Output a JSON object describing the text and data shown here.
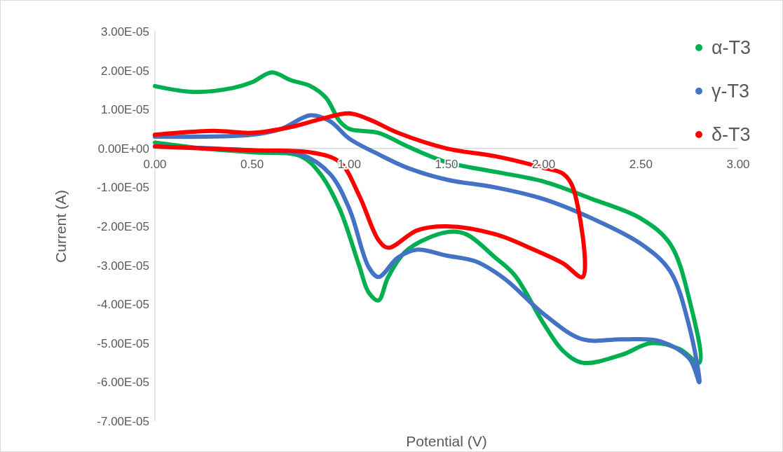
{
  "chart_data": {
    "type": "line",
    "xlabel": "Potential (V)",
    "ylabel": "Current (A)",
    "xlim": [
      0,
      3
    ],
    "ylim": [
      -7e-05,
      3e-05
    ],
    "xticks": [
      {
        "value": 0,
        "label": "0.00"
      },
      {
        "value": 0.5,
        "label": "0.50"
      },
      {
        "value": 1,
        "label": "1.00"
      },
      {
        "value": 1.5,
        "label": "1.50"
      },
      {
        "value": 2,
        "label": "2.00"
      },
      {
        "value": 2.5,
        "label": "2.50"
      },
      {
        "value": 3,
        "label": "3.00"
      }
    ],
    "yticks": [
      {
        "value": 3e-05,
        "label": "3.00E-05"
      },
      {
        "value": 2e-05,
        "label": "2.00E-05"
      },
      {
        "value": 1e-05,
        "label": "1.00E-05"
      },
      {
        "value": 0,
        "label": "0.00E+00"
      },
      {
        "value": -1e-05,
        "label": "-1.00E-05"
      },
      {
        "value": -2e-05,
        "label": "-2.00E-05"
      },
      {
        "value": -3e-05,
        "label": "-3.00E-05"
      },
      {
        "value": -4e-05,
        "label": "-4.00E-05"
      },
      {
        "value": -5e-05,
        "label": "-5.00E-05"
      },
      {
        "value": -6e-05,
        "label": "-6.00E-05"
      },
      {
        "value": -7e-05,
        "label": "-7.00E-05"
      }
    ],
    "grid": false,
    "legend": "top right",
    "marker": "none",
    "line_style": "solid",
    "series": [
      {
        "name": "α-T3",
        "color": "#00b050",
        "x": [
          0,
          0.2,
          0.4,
          0.5,
          0.6,
          0.7,
          0.8,
          0.88,
          0.95,
          1.0,
          1.15,
          1.3,
          1.5,
          1.75,
          2.0,
          2.25,
          2.5,
          2.65,
          2.75,
          2.8,
          2.7,
          2.55,
          2.4,
          2.2,
          2.1,
          2.0,
          1.85,
          1.75,
          1.6,
          1.5,
          1.3,
          1.2,
          1.15,
          1.1,
          1.05,
          0.95,
          0.85,
          0.75,
          0.5,
          0.25,
          0
        ],
        "values": [
          1.6e-05,
          1.45e-05,
          1.55e-05,
          1.7e-05,
          1.95e-05,
          1.75e-05,
          1.6e-05,
          1.3e-05,
          7e-06,
          5e-06,
          4e-06,
          5e-07,
          -3.5e-06,
          -6e-06,
          -8.5e-06,
          -1.3e-05,
          -1.8e-05,
          -2.45e-05,
          -3.9e-05,
          -5.5e-05,
          -5.15e-05,
          -5e-05,
          -5.3e-05,
          -5.5e-05,
          -5.2e-05,
          -4.5e-05,
          -3.25e-05,
          -2.8e-05,
          -2.2e-05,
          -2.15e-05,
          -2.6e-05,
          -3.3e-05,
          -3.9e-05,
          -3.7e-05,
          -3e-05,
          -1.55e-05,
          -6.5e-06,
          -2e-06,
          -1e-06,
          0,
          1.5e-06
        ]
      },
      {
        "name": "γ-T3",
        "color": "#4472c4",
        "x": [
          0,
          0.5,
          0.65,
          0.8,
          0.9,
          1.0,
          1.15,
          1.3,
          1.5,
          1.75,
          2.0,
          2.25,
          2.5,
          2.65,
          2.75,
          2.8,
          2.75,
          2.6,
          2.4,
          2.2,
          2.0,
          1.8,
          1.65,
          1.5,
          1.35,
          1.25,
          1.15,
          1.1,
          1.0,
          0.9,
          0.75,
          0.5,
          0
        ],
        "values": [
          3e-06,
          3.5e-06,
          5e-06,
          8.5e-06,
          7e-06,
          2.5e-06,
          -1.5e-06,
          -5e-06,
          -8e-06,
          -1e-05,
          -1.3e-05,
          -1.8e-05,
          -2.45e-05,
          -3.15e-05,
          -4.6e-05,
          -6e-05,
          -5.4e-05,
          -4.95e-05,
          -4.9e-05,
          -4.9e-05,
          -4.25e-05,
          -3.35e-05,
          -2.9e-05,
          -2.75e-05,
          -2.6e-05,
          -2.8e-05,
          -3.3e-05,
          -3.05e-05,
          -1.55e-05,
          -6.5e-06,
          -1.5e-06,
          -5e-07,
          5e-07
        ]
      },
      {
        "name": "δ-T3",
        "color": "#ff0000",
        "x": [
          0,
          0.3,
          0.5,
          0.7,
          0.85,
          1.0,
          1.1,
          1.25,
          1.5,
          1.75,
          2.0,
          2.1,
          2.15,
          2.2,
          2.1,
          1.95,
          1.75,
          1.5,
          1.35,
          1.2,
          1.15,
          1.05,
          0.95,
          0.8,
          0.5,
          0
        ],
        "values": [
          3.5e-06,
          4.5e-06,
          4e-06,
          5.5e-06,
          7.5e-06,
          9e-06,
          7.5e-06,
          4e-06,
          0,
          -2e-06,
          -5e-06,
          -6.5e-06,
          -1e-05,
          -3.3e-05,
          -2.95e-05,
          -2.6e-05,
          -2.2e-05,
          -2e-05,
          -2.1e-05,
          -2.55e-05,
          -2.35e-05,
          -1.2e-05,
          -3.5e-06,
          -1e-06,
          -5e-07,
          5e-07
        ]
      }
    ]
  }
}
